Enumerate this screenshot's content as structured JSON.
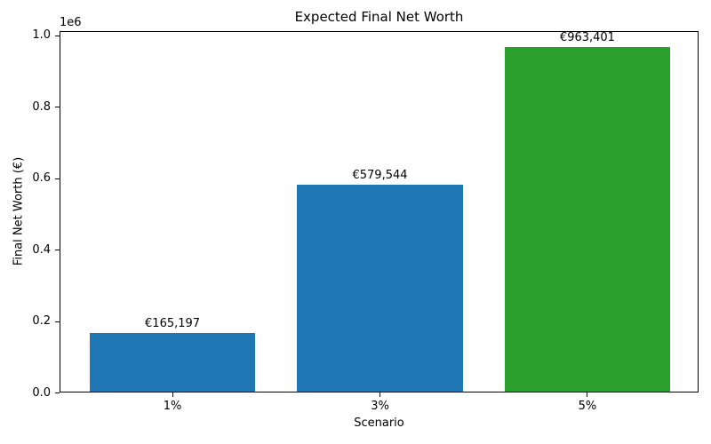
{
  "chart_data": {
    "type": "bar",
    "title": "Expected Final Net Worth",
    "xlabel": "Scenario",
    "ylabel": "Final Net Worth (€)",
    "categories": [
      "1%",
      "3%",
      "5%"
    ],
    "values": [
      165197,
      579544,
      963401
    ],
    "bar_labels": [
      "€165,197",
      "€579,544",
      "€963,401"
    ],
    "bar_colors": [
      "#1f77b4",
      "#1f77b4",
      "#2ca02c"
    ],
    "ylim": [
      0,
      1011571
    ],
    "xlim": [
      -0.54,
      2.54
    ],
    "bar_width": 0.8,
    "yticks": {
      "values": [
        0,
        200000,
        400000,
        600000,
        800000,
        1000000
      ],
      "labels": [
        "0.0",
        "0.2",
        "0.4",
        "0.6",
        "0.8",
        "1.0"
      ]
    },
    "y_offset_label": "1e6",
    "grid": false,
    "legend": null,
    "background_color": "#ffffff",
    "spine_color": "#000000"
  }
}
